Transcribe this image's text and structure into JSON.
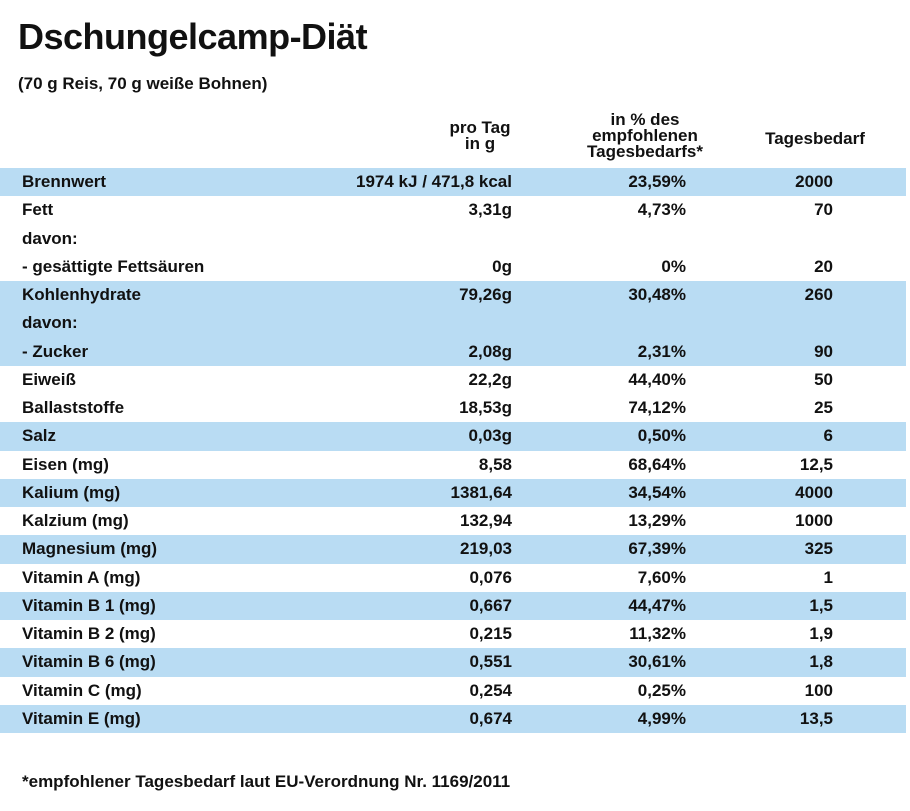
{
  "title": "Dschungelcamp-Diät",
  "subtitle": "(70 g Reis, 70 g weiße Bohnen)",
  "headers": [
    [
      "pro Tag",
      "in g"
    ],
    [
      "in % des",
      "empfohlenen",
      "Tagesbedarfs*"
    ],
    [
      "Tagesbedarf"
    ]
  ],
  "rows": [
    {
      "shaded": true,
      "cells": [
        "Brennwert",
        "1974 kJ / 471,8 kcal",
        "23,59%",
        "2000"
      ]
    },
    {
      "shaded": false,
      "cells": [
        "Fett",
        "3,31g",
        "4,73%",
        "70"
      ]
    },
    {
      "shaded": false,
      "cells": [
        "davon:"
      ]
    },
    {
      "shaded": false,
      "cells": [
        "- gesättigte Fettsäuren",
        "0g",
        "0%",
        "20"
      ]
    },
    {
      "shaded": true,
      "cells": [
        "Kohlenhydrate",
        "79,26g",
        "30,48%",
        "260"
      ]
    },
    {
      "shaded": true,
      "cells": [
        "davon:"
      ]
    },
    {
      "shaded": true,
      "cells": [
        "- Zucker",
        "2,08g",
        "2,31%",
        "90"
      ]
    },
    {
      "shaded": false,
      "cells": [
        "Eiweiß",
        "22,2g",
        "44,40%",
        "50"
      ]
    },
    {
      "shaded": false,
      "cells": [
        "Ballaststoffe",
        "18,53g",
        "74,12%",
        "25"
      ]
    },
    {
      "shaded": true,
      "cells": [
        "Salz",
        "0,03g",
        "0,50%",
        "6"
      ]
    },
    {
      "shaded": false,
      "cells": [
        "Eisen (mg)",
        "8,58",
        "68,64%",
        "12,5"
      ]
    },
    {
      "shaded": true,
      "cells": [
        "Kalium (mg)",
        "1381,64",
        "34,54%",
        "4000"
      ]
    },
    {
      "shaded": false,
      "cells": [
        "Kalzium (mg)",
        "132,94",
        "13,29%",
        "1000"
      ]
    },
    {
      "shaded": true,
      "cells": [
        "Magnesium (mg)",
        "219,03",
        "67,39%",
        "325"
      ]
    },
    {
      "shaded": false,
      "cells": [
        "Vitamin A (mg)",
        "0,076",
        "7,60%",
        "1"
      ]
    },
    {
      "shaded": true,
      "cells": [
        "Vitamin B 1 (mg)",
        "0,667",
        "44,47%",
        "1,5"
      ]
    },
    {
      "shaded": false,
      "cells": [
        "Vitamin B 2 (mg)",
        "0,215",
        "11,32%",
        "1,9"
      ]
    },
    {
      "shaded": true,
      "cells": [
        "Vitamin B 6 (mg)",
        "0,551",
        "30,61%",
        "1,8"
      ]
    },
    {
      "shaded": false,
      "cells": [
        "Vitamin C (mg)",
        "0,254",
        "0,25%",
        "100"
      ]
    },
    {
      "shaded": true,
      "cells": [
        "Vitamin E (mg)",
        "0,674",
        "4,99%",
        "13,5"
      ]
    }
  ],
  "footnote": "*empfohlener Tagesbedarf  laut EU-Verordnung Nr. 1169/2011"
}
